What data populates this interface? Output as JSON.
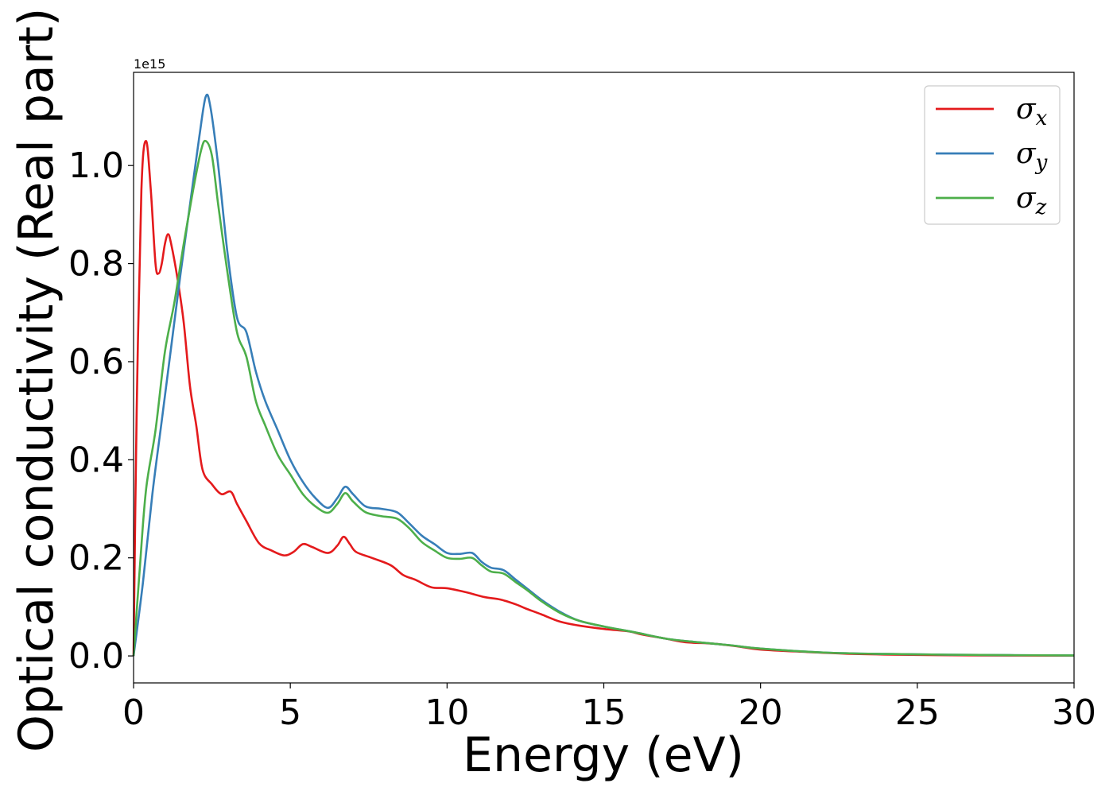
{
  "chart_data": {
    "type": "line",
    "xlabel": "Energy (eV)",
    "ylabel": "Optical conductivity (Real part)",
    "y_offset_label": "1e15",
    "xlim": [
      0,
      30
    ],
    "ylim": [
      -0.055,
      1.19
    ],
    "x_ticks": [
      0,
      5,
      10,
      15,
      20,
      25,
      30
    ],
    "x_tick_labels": [
      "0",
      "5",
      "10",
      "15",
      "20",
      "25",
      "30"
    ],
    "y_ticks": [
      0.0,
      0.2,
      0.4,
      0.6,
      0.8,
      1.0
    ],
    "y_tick_labels": [
      "0.0",
      "0.2",
      "0.4",
      "0.6",
      "0.8",
      "1.0"
    ],
    "grid": false,
    "legend_position": "top-right",
    "series": [
      {
        "name": "σ",
        "subscript": "x",
        "color": "#e41a1c",
        "points": [
          [
            0,
            0
          ],
          [
            0.1,
            0.5
          ],
          [
            0.25,
            0.95
          ],
          [
            0.4,
            1.05
          ],
          [
            0.55,
            0.95
          ],
          [
            0.7,
            0.8
          ],
          [
            0.8,
            0.78
          ],
          [
            0.9,
            0.8
          ],
          [
            1.0,
            0.84
          ],
          [
            1.1,
            0.86
          ],
          [
            1.2,
            0.84
          ],
          [
            1.4,
            0.77
          ],
          [
            1.6,
            0.68
          ],
          [
            1.8,
            0.55
          ],
          [
            2.0,
            0.47
          ],
          [
            2.2,
            0.38
          ],
          [
            2.5,
            0.35
          ],
          [
            2.8,
            0.33
          ],
          [
            3.1,
            0.335
          ],
          [
            3.3,
            0.31
          ],
          [
            3.6,
            0.275
          ],
          [
            4.0,
            0.23
          ],
          [
            4.4,
            0.215
          ],
          [
            4.8,
            0.205
          ],
          [
            5.1,
            0.212
          ],
          [
            5.4,
            0.228
          ],
          [
            5.7,
            0.222
          ],
          [
            6.2,
            0.21
          ],
          [
            6.5,
            0.225
          ],
          [
            6.7,
            0.243
          ],
          [
            6.9,
            0.228
          ],
          [
            7.1,
            0.212
          ],
          [
            7.6,
            0.2
          ],
          [
            8.2,
            0.185
          ],
          [
            8.6,
            0.165
          ],
          [
            9.0,
            0.155
          ],
          [
            9.5,
            0.14
          ],
          [
            10.0,
            0.138
          ],
          [
            10.6,
            0.13
          ],
          [
            11.2,
            0.12
          ],
          [
            11.7,
            0.115
          ],
          [
            12.2,
            0.105
          ],
          [
            12.5,
            0.097
          ],
          [
            13.0,
            0.085
          ],
          [
            13.6,
            0.07
          ],
          [
            14.2,
            0.062
          ],
          [
            15.0,
            0.055
          ],
          [
            15.8,
            0.05
          ],
          [
            16.2,
            0.044
          ],
          [
            17.0,
            0.035
          ],
          [
            17.6,
            0.028
          ],
          [
            18.5,
            0.025
          ],
          [
            19.2,
            0.02
          ],
          [
            20.0,
            0.013
          ],
          [
            21.5,
            0.008
          ],
          [
            23.0,
            0.004
          ],
          [
            25.0,
            0.002
          ],
          [
            27.0,
            0.001
          ],
          [
            30.0,
            0.0005
          ]
        ]
      },
      {
        "name": "σ",
        "subscript": "y",
        "color": "#377eb8",
        "points": [
          [
            0,
            0
          ],
          [
            0.3,
            0.15
          ],
          [
            0.6,
            0.33
          ],
          [
            0.9,
            0.48
          ],
          [
            1.2,
            0.63
          ],
          [
            1.5,
            0.78
          ],
          [
            1.8,
            0.92
          ],
          [
            2.1,
            1.06
          ],
          [
            2.3,
            1.14
          ],
          [
            2.45,
            1.12
          ],
          [
            2.7,
            1.0
          ],
          [
            3.0,
            0.82
          ],
          [
            3.3,
            0.69
          ],
          [
            3.6,
            0.66
          ],
          [
            3.9,
            0.58
          ],
          [
            4.2,
            0.52
          ],
          [
            4.6,
            0.46
          ],
          [
            5.0,
            0.4
          ],
          [
            5.4,
            0.355
          ],
          [
            5.8,
            0.322
          ],
          [
            6.2,
            0.302
          ],
          [
            6.5,
            0.322
          ],
          [
            6.75,
            0.345
          ],
          [
            7.0,
            0.33
          ],
          [
            7.4,
            0.305
          ],
          [
            7.9,
            0.3
          ],
          [
            8.4,
            0.293
          ],
          [
            8.8,
            0.27
          ],
          [
            9.2,
            0.245
          ],
          [
            9.6,
            0.228
          ],
          [
            10.0,
            0.21
          ],
          [
            10.4,
            0.208
          ],
          [
            10.8,
            0.21
          ],
          [
            11.1,
            0.192
          ],
          [
            11.4,
            0.18
          ],
          [
            11.8,
            0.175
          ],
          [
            12.2,
            0.155
          ],
          [
            12.6,
            0.135
          ],
          [
            13.0,
            0.115
          ],
          [
            13.6,
            0.09
          ],
          [
            14.2,
            0.072
          ],
          [
            15.0,
            0.06
          ],
          [
            16.0,
            0.048
          ],
          [
            17.0,
            0.035
          ],
          [
            18.0,
            0.028
          ],
          [
            19.0,
            0.022
          ],
          [
            20.0,
            0.015
          ],
          [
            22.0,
            0.007
          ],
          [
            24.0,
            0.004
          ],
          [
            27.0,
            0.002
          ],
          [
            30.0,
            0.001
          ]
        ]
      },
      {
        "name": "σ",
        "subscript": "z",
        "color": "#4daf4a",
        "points": [
          [
            0,
            0
          ],
          [
            0.2,
            0.18
          ],
          [
            0.4,
            0.34
          ],
          [
            0.7,
            0.46
          ],
          [
            1.0,
            0.62
          ],
          [
            1.3,
            0.72
          ],
          [
            1.6,
            0.84
          ],
          [
            1.9,
            0.95
          ],
          [
            2.15,
            1.03
          ],
          [
            2.3,
            1.05
          ],
          [
            2.5,
            1.02
          ],
          [
            2.7,
            0.92
          ],
          [
            3.0,
            0.78
          ],
          [
            3.3,
            0.66
          ],
          [
            3.6,
            0.61
          ],
          [
            3.9,
            0.52
          ],
          [
            4.2,
            0.47
          ],
          [
            4.6,
            0.41
          ],
          [
            5.0,
            0.37
          ],
          [
            5.4,
            0.33
          ],
          [
            5.8,
            0.305
          ],
          [
            6.2,
            0.292
          ],
          [
            6.5,
            0.31
          ],
          [
            6.75,
            0.332
          ],
          [
            7.0,
            0.315
          ],
          [
            7.4,
            0.293
          ],
          [
            7.9,
            0.285
          ],
          [
            8.4,
            0.28
          ],
          [
            8.8,
            0.26
          ],
          [
            9.2,
            0.232
          ],
          [
            9.6,
            0.215
          ],
          [
            10.0,
            0.2
          ],
          [
            10.4,
            0.198
          ],
          [
            10.8,
            0.2
          ],
          [
            11.1,
            0.185
          ],
          [
            11.4,
            0.172
          ],
          [
            11.8,
            0.168
          ],
          [
            12.2,
            0.15
          ],
          [
            12.6,
            0.132
          ],
          [
            13.0,
            0.112
          ],
          [
            13.6,
            0.088
          ],
          [
            14.2,
            0.072
          ],
          [
            15.0,
            0.06
          ],
          [
            16.0,
            0.048
          ],
          [
            17.0,
            0.035
          ],
          [
            18.0,
            0.028
          ],
          [
            19.0,
            0.022
          ],
          [
            20.0,
            0.015
          ],
          [
            22.0,
            0.007
          ],
          [
            24.0,
            0.004
          ],
          [
            27.0,
            0.002
          ],
          [
            30.0,
            0.001
          ]
        ]
      }
    ]
  }
}
